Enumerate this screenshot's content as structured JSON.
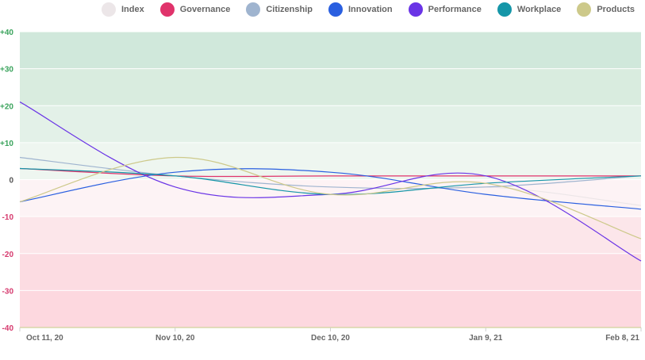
{
  "chart_data": {
    "type": "line",
    "ylim": [
      -40,
      40
    ],
    "yticks": [
      40,
      30,
      20,
      10,
      0,
      -10,
      -20,
      -30,
      -40
    ],
    "ytick_labels": [
      "+40",
      "+30",
      "+20",
      "+10",
      "0",
      "-10",
      "-20",
      "-30",
      "-40"
    ],
    "x": [
      "2020-10-11",
      "2020-11-10",
      "2020-12-10",
      "2021-01-09",
      "2021-02-08"
    ],
    "xtick_labels": [
      "Oct 11, 20",
      "Nov 10, 20",
      "Dec 10, 20",
      "Jan 9, 21",
      "Feb 8, 21"
    ],
    "legend_position": "top-right",
    "grid": true,
    "band_colors": {
      "positive": [
        "#d0e8db",
        "#d9ecdf",
        "#e3f1e8",
        "#eef6f0"
      ],
      "negative": [
        "#fdf3f5",
        "#fce6ea",
        "#fcdce2",
        "#fdd8df"
      ]
    },
    "tick_colors": {
      "positive": "#3aa35c",
      "negative": "#d63a6e",
      "zero": "#555555"
    },
    "series": [
      {
        "name": "Index",
        "color": "#ece6e8",
        "values": [
          3,
          1,
          -4,
          -2,
          -7
        ]
      },
      {
        "name": "Governance",
        "color": "#e0336b",
        "values": [
          3,
          1,
          1,
          1,
          1
        ]
      },
      {
        "name": "Citizenship",
        "color": "#9fb4cf",
        "values": [
          6,
          1,
          -2,
          -2,
          1
        ]
      },
      {
        "name": "Innovation",
        "color": "#2a5fe0",
        "values": [
          -6,
          2,
          2,
          -4,
          -8
        ]
      },
      {
        "name": "Performance",
        "color": "#6a34e6",
        "values": [
          21,
          -2,
          -4,
          1,
          -22
        ]
      },
      {
        "name": "Workplace",
        "color": "#1596a8",
        "values": [
          3,
          1,
          -4,
          -1,
          1
        ]
      },
      {
        "name": "Products",
        "color": "#cdc98a",
        "values": [
          -6,
          6,
          -4,
          -1,
          -16
        ]
      }
    ]
  }
}
